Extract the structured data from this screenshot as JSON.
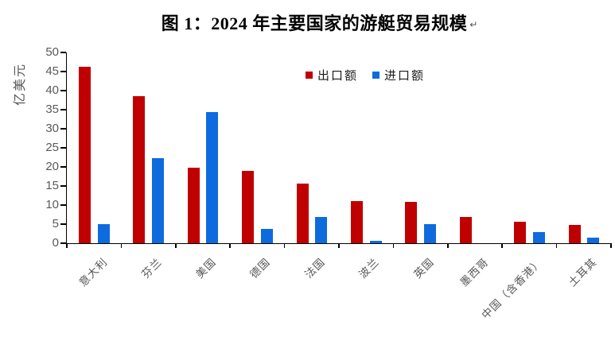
{
  "page": {
    "paragraph_mark": "↵"
  },
  "chart_data": {
    "type": "bar",
    "title": "图 1：2024 年主要国家的游艇贸易规模",
    "ylabel": "亿美元",
    "categories": [
      "意大利",
      "芬兰",
      "美国",
      "德国",
      "法国",
      "波兰",
      "英国",
      "墨西哥",
      "中国（含香港）",
      "土耳其"
    ],
    "series": [
      {
        "name": "出口额",
        "color": "#c00000",
        "values": [
          46.3,
          38.5,
          19.7,
          19.0,
          15.7,
          11.1,
          10.9,
          6.9,
          5.7,
          4.7
        ]
      },
      {
        "name": "进口额",
        "color": "#0d6bdd",
        "values": [
          4.9,
          22.2,
          34.3,
          3.8,
          6.9,
          0.6,
          4.9,
          0,
          3.0,
          1.5
        ]
      }
    ],
    "ylim": [
      0,
      50
    ],
    "ytick_step": 5,
    "legend_position": "top-center",
    "grid": false,
    "axis_color": "#000000",
    "tick_label_color": "#595959"
  }
}
